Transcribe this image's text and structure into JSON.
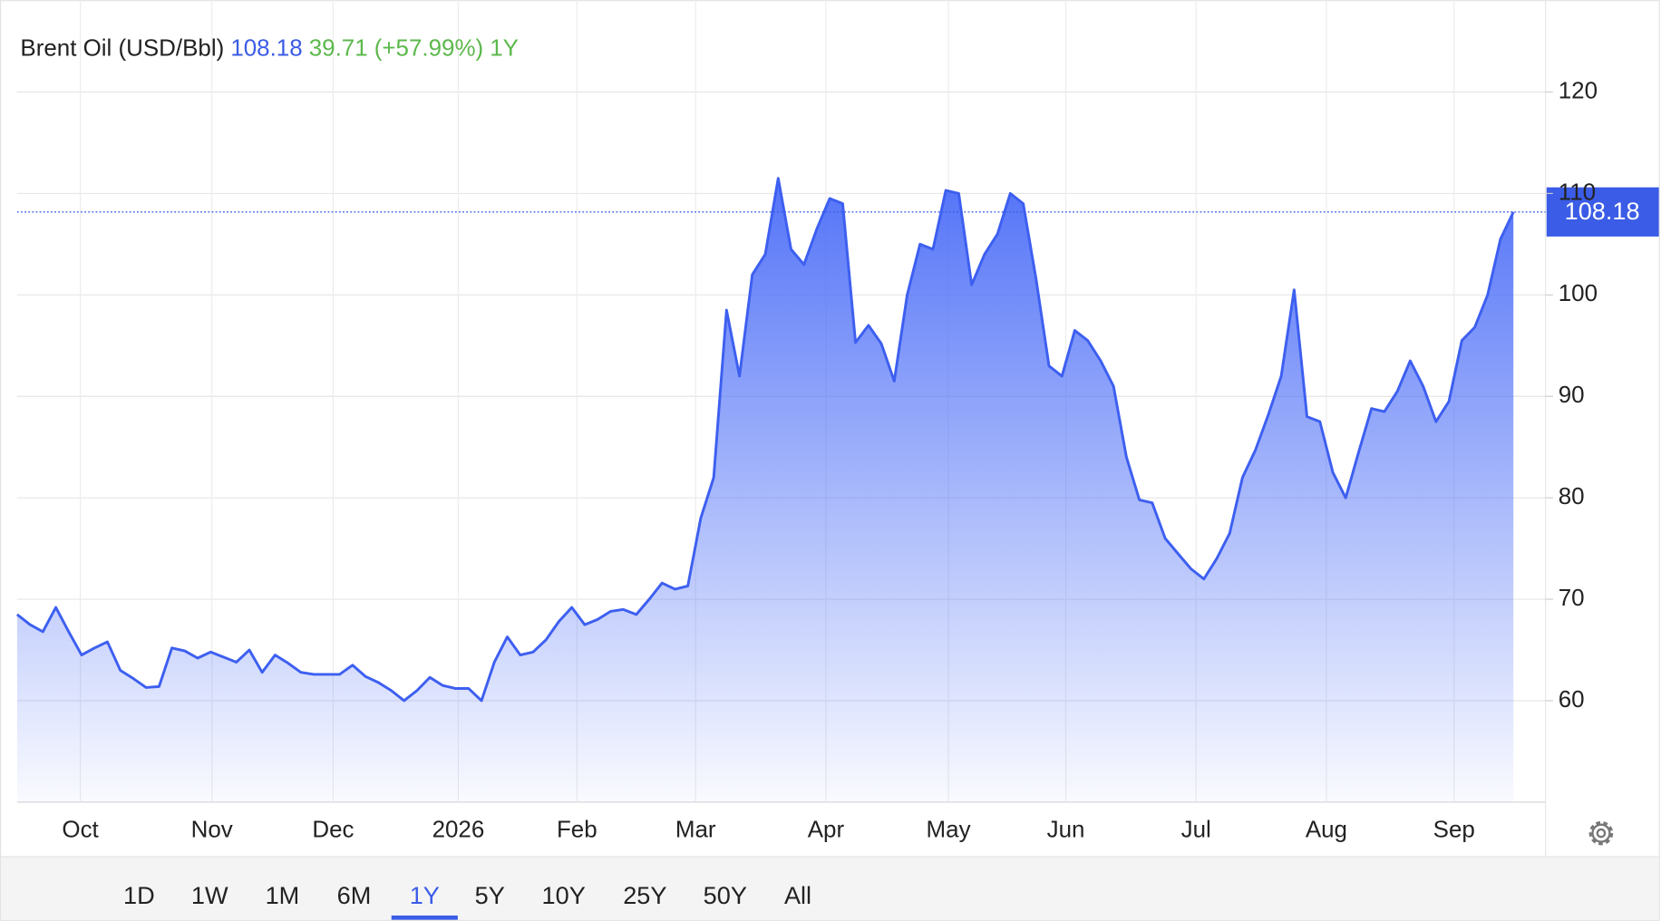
{
  "chart_data": {
    "type": "area",
    "title": "Brent Oil (USD/Bbl)",
    "price": "108.18",
    "change": "39.71",
    "change_pct": "(+57.99%)",
    "period": "1Y",
    "color": "#3d5ff0",
    "grid": true,
    "xlim": [
      0,
      116
    ],
    "xticks": [
      {
        "value": 4.9,
        "label": "Oct"
      },
      {
        "value": 15.1,
        "label": "Nov"
      },
      {
        "value": 24.5,
        "label": "Dec"
      },
      {
        "value": 34.2,
        "label": "2026"
      },
      {
        "value": 43.4,
        "label": "Feb"
      },
      {
        "value": 52.6,
        "label": "Mar"
      },
      {
        "value": 62.7,
        "label": "Apr"
      },
      {
        "value": 72.2,
        "label": "May"
      },
      {
        "value": 81.3,
        "label": "Jun"
      },
      {
        "value": 91.4,
        "label": "Jul"
      },
      {
        "value": 101.5,
        "label": "Aug"
      },
      {
        "value": 111.4,
        "label": "Sep"
      }
    ],
    "ylim": [
      50,
      126
    ],
    "yticks": [
      60,
      70,
      80,
      90,
      100,
      110,
      120
    ],
    "values": [
      68.5,
      67.5,
      66.8,
      69.2,
      66.8,
      64.5,
      65.2,
      65.8,
      63.0,
      62.2,
      61.3,
      61.4,
      65.2,
      64.9,
      64.2,
      64.8,
      64.3,
      63.8,
      65.0,
      62.8,
      64.5,
      63.7,
      62.8,
      62.6,
      62.6,
      62.6,
      63.5,
      62.4,
      61.8,
      61.0,
      60.0,
      61.0,
      62.3,
      61.5,
      61.2,
      61.2,
      60.0,
      63.8,
      66.3,
      64.5,
      64.8,
      66.0,
      67.8,
      69.2,
      67.5,
      68.0,
      68.8,
      69.0,
      68.5,
      70.0,
      71.6,
      71.0,
      71.3,
      78.0,
      82.0,
      98.5,
      92.0,
      102.0,
      104.0,
      111.5,
      104.5,
      103.0,
      106.5,
      109.5,
      109.0,
      95.3,
      97.0,
      95.2,
      91.5,
      100.0,
      105.0,
      104.5,
      110.3,
      110.0,
      101.0,
      104.0,
      106.0,
      110.0,
      109.0,
      101.5,
      93.0,
      92.0,
      96.5,
      95.5,
      93.5,
      91.0,
      84.0,
      79.8,
      79.5,
      76.0,
      74.5,
      73.0,
      72.0,
      74.0,
      76.5,
      82.0,
      84.7,
      88.2,
      92.0,
      100.5,
      88.0,
      87.5,
      82.5,
      80.0,
      84.5,
      88.8,
      88.5,
      90.5,
      93.5,
      91.0,
      87.5,
      89.5,
      95.5,
      96.8,
      100.0,
      105.5,
      108.18
    ]
  },
  "ranges": [
    "1D",
    "1W",
    "1M",
    "6M",
    "1Y",
    "5Y",
    "10Y",
    "25Y",
    "50Y",
    "All"
  ],
  "selected_range": 4
}
